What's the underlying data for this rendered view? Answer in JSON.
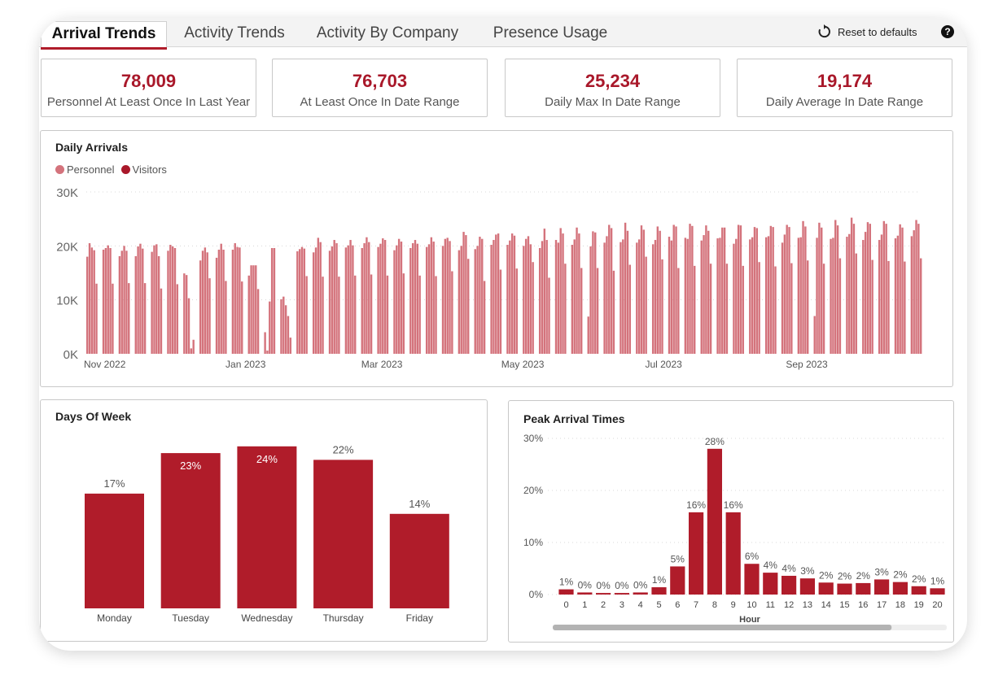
{
  "tabs": [
    {
      "label": "Arrival Trends",
      "active": true
    },
    {
      "label": "Activity Trends",
      "active": false
    },
    {
      "label": "Activity By Company",
      "active": false
    },
    {
      "label": "Presence Usage",
      "active": false
    }
  ],
  "toolbar": {
    "reset_label": "Reset to defaults",
    "reset_icon": "reset-icon",
    "help_label": "?",
    "help_icon": "help-icon"
  },
  "kpis": [
    {
      "value": "78,009",
      "label": "Personnel At Least Once In Last Year"
    },
    {
      "value": "76,703",
      "label": "At Least Once In Date Range"
    },
    {
      "value": "25,234",
      "label": "Daily Max In Date Range"
    },
    {
      "value": "19,174",
      "label": "Daily Average In Date Range"
    }
  ],
  "colors": {
    "accent": "#b01c2a",
    "personnel": "#d4737c",
    "visitors": "#a9182a",
    "kpi_value": "#a9182a"
  },
  "chart_data": [
    {
      "type": "bar",
      "title": "Daily Arrivals",
      "legend": [
        "Personnel",
        "Visitors"
      ],
      "legend_position": "top-left",
      "ylim": [
        0,
        30000
      ],
      "y_ticks": [
        "0K",
        "10K",
        "20K",
        "30K"
      ],
      "y_tick_values": [
        0,
        10000,
        20000,
        30000
      ],
      "x_tick_labels": [
        "Nov 2022",
        "Jan 2023",
        "Mar 2023",
        "May 2023",
        "Jul 2023",
        "Sep 2023"
      ],
      "x_range": [
        "2022-10-24",
        "2023-10-20"
      ],
      "x_ticks": [
        "2022-11-01",
        "2023-01-01",
        "2023-03-01",
        "2023-05-01",
        "2023-07-01",
        "2023-09-01"
      ],
      "grid": true,
      "weekly_pattern_note": "",
      "weeks": [
        {
          "start": "2022-10-24",
          "values": [
            18000,
            20500,
            19700,
            19200,
            13000
          ]
        },
        {
          "start": "2022-10-31",
          "values": [
            19300,
            19600,
            20100,
            19600,
            13000
          ]
        },
        {
          "start": "2022-11-07",
          "values": [
            18100,
            19100,
            20000,
            19100,
            13100
          ]
        },
        {
          "start": "2022-11-14",
          "values": [
            18100,
            19900,
            20400,
            19500,
            13100
          ]
        },
        {
          "start": "2022-11-21",
          "values": [
            18900,
            20100,
            20300,
            18100,
            12100
          ]
        },
        {
          "start": "2022-11-28",
          "values": [
            19100,
            20200,
            19900,
            19600,
            12900
          ]
        },
        {
          "start": "2022-12-05",
          "values": [
            14900,
            14600,
            10300,
            1000,
            2600
          ]
        },
        {
          "start": "2022-12-12",
          "values": [
            17300,
            19100,
            19700,
            18800,
            14000
          ]
        },
        {
          "start": "2022-12-19",
          "values": [
            17800,
            19300,
            20400,
            19300,
            13500
          ]
        },
        {
          "start": "2022-12-26",
          "values": [
            19300,
            20500,
            19800,
            19700,
            13400
          ]
        },
        {
          "start": "2023-01-02",
          "values": [
            14500,
            16400,
            16400,
            16400,
            12000
          ]
        },
        {
          "start": "2023-01-09",
          "values": [
            4000,
            600,
            9700,
            19600,
            19600
          ]
        },
        {
          "start": "2023-01-16",
          "values": [
            10100,
            10600,
            9000,
            7000,
            3000
          ]
        },
        {
          "start": "2023-01-23",
          "values": [
            19000,
            19400,
            19800,
            19500,
            14400
          ]
        },
        {
          "start": "2023-01-30",
          "values": [
            18800,
            19700,
            21500,
            20700,
            14300
          ]
        },
        {
          "start": "2023-02-06",
          "values": [
            19100,
            19900,
            21100,
            20500,
            14300
          ]
        },
        {
          "start": "2023-02-13",
          "values": [
            19700,
            20100,
            21100,
            20100,
            14500
          ]
        },
        {
          "start": "2023-02-20",
          "values": [
            19600,
            20500,
            21600,
            20700,
            14700
          ]
        },
        {
          "start": "2023-02-27",
          "values": [
            19800,
            20400,
            21400,
            21100,
            14500
          ]
        },
        {
          "start": "2023-03-06",
          "values": [
            19200,
            20100,
            21300,
            20800,
            14900
          ]
        },
        {
          "start": "2023-03-13",
          "values": [
            19600,
            20500,
            21100,
            20400,
            14500
          ]
        },
        {
          "start": "2023-03-20",
          "values": [
            19800,
            20300,
            21600,
            20800,
            14400
          ]
        },
        {
          "start": "2023-03-27",
          "values": [
            20000,
            21300,
            21500,
            20900,
            15300
          ]
        },
        {
          "start": "2023-04-03",
          "values": [
            19200,
            20000,
            22600,
            22000,
            17600
          ]
        },
        {
          "start": "2023-04-10",
          "values": [
            19400,
            20000,
            21700,
            21300,
            13500
          ]
        },
        {
          "start": "2023-04-17",
          "values": [
            20200,
            21100,
            22100,
            22300,
            15600
          ]
        },
        {
          "start": "2023-04-24",
          "values": [
            20200,
            21000,
            22300,
            21900,
            15800
          ]
        },
        {
          "start": "2023-05-01",
          "values": [
            20000,
            21300,
            21800,
            20300,
            17000
          ]
        },
        {
          "start": "2023-05-08",
          "values": [
            19600,
            20900,
            23200,
            21100,
            14100
          ]
        },
        {
          "start": "2023-05-15",
          "values": [
            21100,
            20600,
            23300,
            22300,
            16700
          ]
        },
        {
          "start": "2023-05-22",
          "values": [
            20200,
            21200,
            23400,
            22300,
            15900
          ]
        },
        {
          "start": "2023-05-29",
          "values": [
            6900,
            19900,
            22700,
            22500,
            15900
          ]
        },
        {
          "start": "2023-06-05",
          "values": [
            20600,
            21800,
            23900,
            23300,
            15400
          ]
        },
        {
          "start": "2023-06-12",
          "values": [
            20700,
            21200,
            24300,
            22800,
            16500
          ]
        },
        {
          "start": "2023-06-19",
          "values": [
            20600,
            21200,
            23800,
            23000,
            18000
          ]
        },
        {
          "start": "2023-06-26",
          "values": [
            20300,
            21100,
            23600,
            22800,
            17500
          ]
        },
        {
          "start": "2023-07-03",
          "values": [
            21700,
            21000,
            23900,
            23600,
            15900
          ]
        },
        {
          "start": "2023-07-10",
          "values": [
            21500,
            21300,
            24100,
            23700,
            16300
          ]
        },
        {
          "start": "2023-07-17",
          "values": [
            21000,
            22000,
            23800,
            22800,
            16700
          ]
        },
        {
          "start": "2023-07-24",
          "values": [
            21400,
            21500,
            23400,
            23400,
            16700
          ]
        },
        {
          "start": "2023-07-31",
          "values": [
            20400,
            21300,
            23900,
            23800,
            16300
          ]
        },
        {
          "start": "2023-08-07",
          "values": [
            21200,
            21600,
            23500,
            23300,
            17000
          ]
        },
        {
          "start": "2023-08-14",
          "values": [
            21600,
            21800,
            23700,
            23500,
            16200
          ]
        },
        {
          "start": "2023-08-21",
          "values": [
            20600,
            22100,
            23900,
            23500,
            16800
          ]
        },
        {
          "start": "2023-08-28",
          "values": [
            21500,
            21600,
            24600,
            23600,
            17300
          ]
        },
        {
          "start": "2023-09-04",
          "values": [
            7000,
            21500,
            24300,
            23400,
            16700
          ]
        },
        {
          "start": "2023-09-11",
          "values": [
            21300,
            21500,
            24800,
            23800,
            17700
          ]
        },
        {
          "start": "2023-09-18",
          "values": [
            21700,
            22200,
            25234,
            24100,
            18600
          ]
        },
        {
          "start": "2023-09-25",
          "values": [
            21100,
            22600,
            24400,
            24100,
            17400
          ]
        },
        {
          "start": "2023-10-02",
          "values": [
            21100,
            22100,
            24600,
            24100,
            17200
          ]
        },
        {
          "start": "2023-10-09",
          "values": [
            21400,
            21900,
            24000,
            23400,
            17100
          ]
        },
        {
          "start": "2023-10-16",
          "values": [
            21800,
            22900,
            24800,
            24100,
            17700
          ]
        }
      ]
    },
    {
      "type": "bar",
      "title": "Days Of Week",
      "categories": [
        "Monday",
        "Tuesday",
        "Wednesday",
        "Thursday",
        "Friday"
      ],
      "values": [
        17,
        23,
        24,
        22,
        14
      ],
      "labels": [
        "17%",
        "23%",
        "24%",
        "22%",
        "14%"
      ],
      "unit": "%",
      "grid": false
    },
    {
      "type": "bar",
      "title": "Peak Arrival Times",
      "xlabel": "Hour",
      "categories": [
        "0",
        "1",
        "2",
        "3",
        "4",
        "5",
        "6",
        "7",
        "8",
        "9",
        "10",
        "11",
        "12",
        "13",
        "14",
        "15",
        "16",
        "17",
        "18",
        "19",
        "20"
      ],
      "values": [
        1,
        0.4,
        0.3,
        0.3,
        0.4,
        1.4,
        5.4,
        15.8,
        28,
        15.8,
        5.9,
        4.2,
        3.6,
        3.1,
        2.3,
        2.1,
        2.2,
        2.9,
        2.4,
        1.6,
        1.2
      ],
      "labels": [
        "1%",
        "0%",
        "0%",
        "0%",
        "0%",
        "1%",
        "5%",
        "16%",
        "28%",
        "16%",
        "6%",
        "4%",
        "4%",
        "3%",
        "2%",
        "2%",
        "2%",
        "3%",
        "2%",
        "2%",
        "1%"
      ],
      "ylim": [
        0,
        30
      ],
      "y_ticks": [
        "0%",
        "10%",
        "20%",
        "30%"
      ],
      "y_tick_values": [
        0,
        10,
        20,
        30
      ],
      "grid": true,
      "scrollbar_visible_fraction": 0.86
    }
  ]
}
